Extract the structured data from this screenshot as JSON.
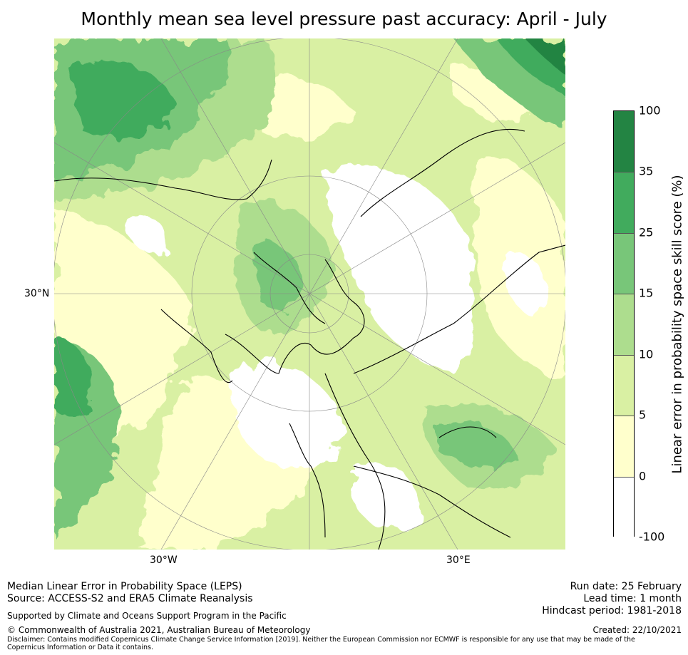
{
  "title": "Monthly mean sea level pressure past accuracy: April - July",
  "map": {
    "axis_labels": {
      "left": "30°N",
      "bottom_left": "30°W",
      "bottom_right": "30°E"
    }
  },
  "colorbar": {
    "title": "Linear error in probability space skill score (%)",
    "ticks": [
      "100",
      "35",
      "25",
      "15",
      "10",
      "5",
      "0",
      "-100"
    ],
    "bins": [
      {
        "range": "35 to 100",
        "color": "#238443"
      },
      {
        "range": "25 to 35",
        "color": "#41ab5d"
      },
      {
        "range": "15 to 25",
        "color": "#78c679"
      },
      {
        "range": "10 to 15",
        "color": "#addd8e"
      },
      {
        "range": "5 to 10",
        "color": "#d9f0a3"
      },
      {
        "range": "0 to 5",
        "color": "#ffffcc"
      },
      {
        "range": "-100 to 0",
        "color": "#ffffff"
      }
    ]
  },
  "footer": {
    "left_line1": "Median Linear Error in Probability Space (LEPS)",
    "left_line2": "Source: ACCESS-S2 and ERA5 Climate Reanalysis",
    "supported": "Supported by Climate and Oceans Support Program in the Pacific",
    "copyright": "© Commonwealth of Australia 2021, Australian Bureau of Meteorology",
    "disclaimer": "Disclaimer: Contains modified Copernicus Climate Change Service Information [2019]. Neither the European Commission nor ECMWF is responsible for any use that may be made of the Copernicus Information or Data it contains.",
    "run_date": "Run date: 25 February",
    "lead_time": "Lead time: 1 month",
    "hindcast": "Hindcast period: 1981-2018",
    "created": "Created: 22/10/2021"
  }
}
